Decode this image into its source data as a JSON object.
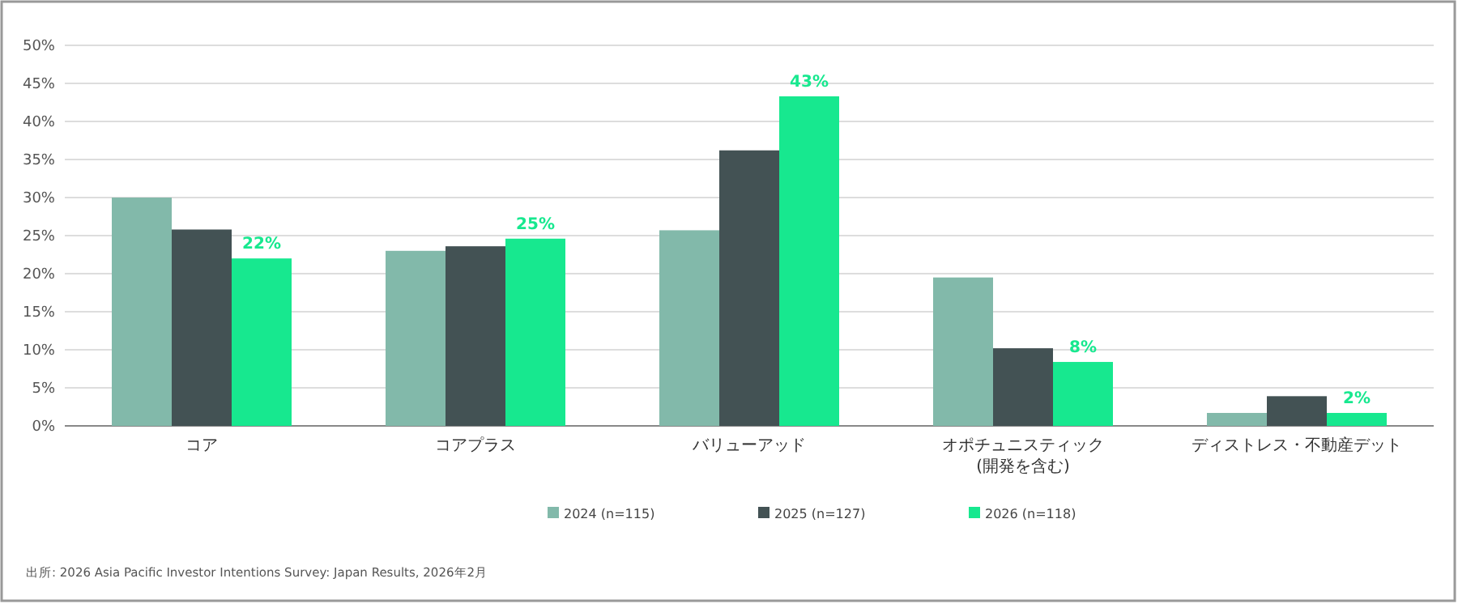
{
  "chart_data": {
    "type": "bar",
    "categories": [
      "コア",
      "コアプラス",
      "バリューアッド",
      "オポチュニスティック\n(開発を含む)",
      "ディストレス・不動産デット"
    ],
    "series": [
      {
        "name": "2024 (n=115)",
        "color": "#82b9aa",
        "values": [
          30,
          23,
          25.7,
          19.5,
          1.7
        ]
      },
      {
        "name": "2025 (n=127)",
        "color": "#435254",
        "values": [
          25.8,
          23.6,
          36.2,
          10.2,
          3.9
        ]
      },
      {
        "name": "2026 (n=118)",
        "color": "#17e88f",
        "values": [
          22,
          24.6,
          43.3,
          8.4,
          1.7
        ],
        "value_labels": [
          "22%",
          "25%",
          "43%",
          "8%",
          "2%"
        ]
      }
    ],
    "ylim": [
      0,
      50
    ],
    "yticks": [
      {
        "value": 0,
        "label": "0%"
      },
      {
        "value": 5,
        "label": "5%"
      },
      {
        "value": 10,
        "label": "10%"
      },
      {
        "value": 15,
        "label": "15%"
      },
      {
        "value": 20,
        "label": "20%"
      },
      {
        "value": 25,
        "label": "25%"
      },
      {
        "value": 30,
        "label": "30%"
      },
      {
        "value": 35,
        "label": "35%"
      },
      {
        "value": 40,
        "label": "40%"
      },
      {
        "value": 45,
        "label": "45%"
      },
      {
        "value": 50,
        "label": "50%"
      }
    ],
    "grid": "y",
    "legend": "bottom",
    "annotations": [
      "出所: 2026 Asia Pacific Investor Intentions Survey: Japan Results, 2026年2月"
    ]
  }
}
